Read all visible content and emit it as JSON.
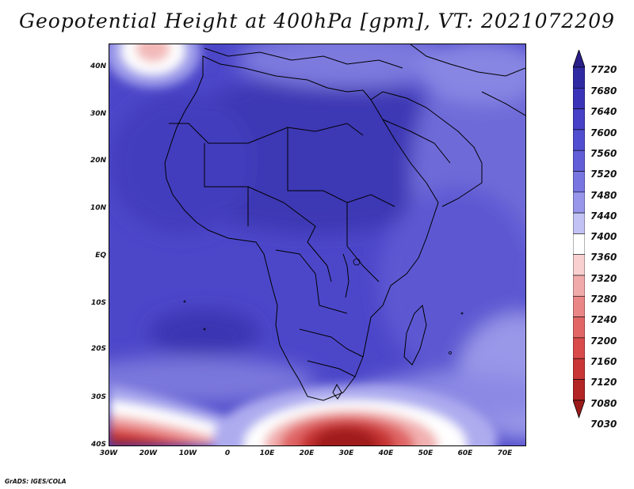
{
  "title": "Geopotential Height at 400hPa [gpm], VT: 2021072209",
  "credit": "GrADS: IGES/COLA",
  "map": {
    "lon_range": [
      -30,
      75
    ],
    "lat_range": [
      -40,
      45
    ],
    "lat_labels": [
      "40N",
      "30N",
      "20N",
      "10N",
      "EQ",
      "10S",
      "20S",
      "30S",
      "40S"
    ],
    "lon_labels": [
      "30W",
      "20W",
      "10W",
      "0",
      "10E",
      "20E",
      "30E",
      "40E",
      "50E",
      "60E",
      "70E"
    ]
  },
  "colorbar": {
    "labels": [
      "7720",
      "7680",
      "7640",
      "7600",
      "7560",
      "7520",
      "7480",
      "7440",
      "7400",
      "7360",
      "7320",
      "7280",
      "7240",
      "7200",
      "7160",
      "7120",
      "7080",
      "7030"
    ],
    "colors": [
      "#2a1f8a",
      "#302aa2",
      "#3a35b8",
      "#4641c6",
      "#514fd0",
      "#615ed8",
      "#7876e0",
      "#9896ea",
      "#c3c2f4",
      "#ffffff",
      "#f8d0d0",
      "#f1aaaa",
      "#e98787",
      "#e26666",
      "#d94a4a",
      "#c93636",
      "#b32424",
      "#9a1a1a"
    ]
  }
}
